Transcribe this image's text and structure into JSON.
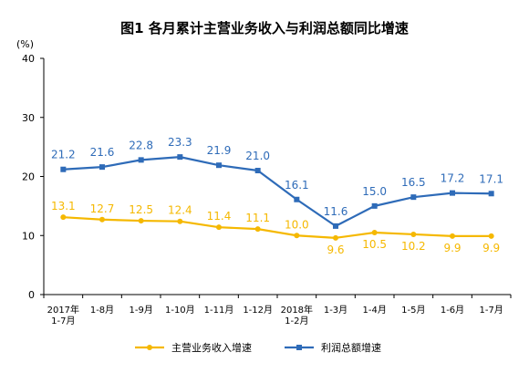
{
  "chart_data": {
    "type": "line",
    "title": "图1  各月累计主营业务收入与利润总额同比增速",
    "ylabel": "(%)",
    "xlabel": "",
    "ylim": [
      0,
      40
    ],
    "yticks": [
      0,
      10,
      20,
      30,
      40
    ],
    "grid": false,
    "legend_position": "bottom",
    "categories": [
      [
        "2017年",
        "1-7月"
      ],
      [
        "1-8月"
      ],
      [
        "1-9月"
      ],
      [
        "1-10月"
      ],
      [
        "1-11月"
      ],
      [
        "1-12月"
      ],
      [
        "2018年",
        "1-2月"
      ],
      [
        "1-3月"
      ],
      [
        "1-4月"
      ],
      [
        "1-5月"
      ],
      [
        "1-6月"
      ],
      [
        "1-7月"
      ]
    ],
    "series": [
      {
        "name": "主营业务收入增速",
        "color": "#f5b800",
        "marker": "circle",
        "values": [
          13.1,
          12.7,
          12.5,
          12.4,
          11.4,
          11.1,
          10.0,
          9.6,
          10.5,
          10.2,
          9.9,
          9.9
        ],
        "labels": [
          "13.1",
          "12.7",
          "12.5",
          "12.4",
          "11.4",
          "11.1",
          "10.0",
          "9.6",
          "10.5",
          "10.2",
          "9.9",
          "9.9"
        ]
      },
      {
        "name": "利润总额增速",
        "color": "#2e6bb8",
        "marker": "square",
        "values": [
          21.2,
          21.6,
          22.8,
          23.3,
          21.9,
          21.0,
          16.1,
          11.6,
          15.0,
          16.5,
          17.2,
          17.1
        ],
        "labels": [
          "21.2",
          "21.6",
          "22.8",
          "23.3",
          "21.9",
          "21.0",
          "16.1",
          "11.6",
          "15.0",
          "16.5",
          "17.2",
          "17.1"
        ]
      }
    ]
  }
}
